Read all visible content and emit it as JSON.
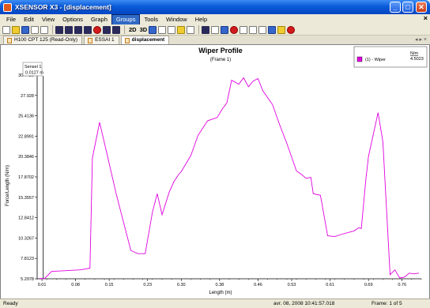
{
  "window": {
    "title": "XSENSOR X3 - [displacement]",
    "minimize_glyph": "_",
    "maximize_glyph": "□",
    "close_glyph": "✕"
  },
  "menu": {
    "items": [
      "File",
      "Edit",
      "View",
      "Options",
      "Graph",
      "Groups",
      "Tools",
      "Window",
      "Help"
    ],
    "active_index": 5,
    "mdi_close_glyph": "×"
  },
  "toolbar": {
    "view_2d": "2D",
    "view_3d": "3D"
  },
  "tabs": [
    {
      "label": "H100 CPT 125 (Read-Only)",
      "active": false
    },
    {
      "label": "ESSAI 1",
      "active": false
    },
    {
      "label": "displacement",
      "active": true
    }
  ],
  "tab_nav": "◂ ▸ ×",
  "chart_data": {
    "type": "line",
    "title": "Wiper Profile",
    "subtitle": "(Frame 1)",
    "xlabel": "Length (m)",
    "ylabel": "Force/Length (N/m)",
    "xlim": [
      0.0,
      0.8
    ],
    "ylim": [
      5.2978,
      30.4425
    ],
    "x_ticks": [
      "0.01",
      "0.08",
      "0.15",
      "0.23",
      "0.30",
      "0.38",
      "0.46",
      "0.53",
      "0.61",
      "0.69",
      "0.76"
    ],
    "x_tick_values": [
      0.01,
      0.08,
      0.15,
      0.23,
      0.3,
      0.38,
      0.46,
      0.53,
      0.61,
      0.69,
      0.76
    ],
    "y_ticks": [
      "5.2978",
      "7.8123",
      "10.3267",
      "12.8412",
      "15.3557",
      "17.8702",
      "20.3846",
      "22.8991",
      "25.4136",
      "27.928",
      "30.4425"
    ],
    "y_tick_values": [
      5.2978,
      7.8123,
      10.3267,
      12.8412,
      15.3557,
      17.8702,
      20.3846,
      22.8991,
      25.4136,
      27.928,
      30.4425
    ],
    "series": [
      {
        "name": "(1) - Wiper",
        "color": "#e000e0",
        "x": [
          0.005,
          0.015,
          0.03,
          0.06,
          0.09,
          0.11,
          0.115,
          0.13,
          0.145,
          0.165,
          0.195,
          0.21,
          0.225,
          0.24,
          0.25,
          0.26,
          0.275,
          0.285,
          0.295,
          0.3,
          0.32,
          0.335,
          0.355,
          0.375,
          0.385,
          0.395,
          0.405,
          0.42,
          0.43,
          0.44,
          0.45,
          0.46,
          0.47,
          0.49,
          0.505,
          0.52,
          0.54,
          0.55,
          0.56,
          0.57,
          0.575,
          0.59,
          0.605,
          0.62,
          0.635,
          0.66,
          0.67,
          0.675,
          0.685,
          0.69,
          0.71,
          0.72,
          0.735,
          0.745,
          0.755,
          0.765,
          0.775,
          0.785,
          0.795
        ],
        "y": [
          5.35,
          5.3,
          6.2,
          6.3,
          6.4,
          6.6,
          20.2,
          24.6,
          20.8,
          15.7,
          8.8,
          8.4,
          8.4,
          13.5,
          15.8,
          13.2,
          16.0,
          17.3,
          18.2,
          18.5,
          20.5,
          23.0,
          24.8,
          25.2,
          26.2,
          27.0,
          29.8,
          29.3,
          30.1,
          29.0,
          29.7,
          30.0,
          28.5,
          26.8,
          24.3,
          22.0,
          18.6,
          18.2,
          17.7,
          17.8,
          15.8,
          15.6,
          10.6,
          10.5,
          10.8,
          11.2,
          11.6,
          11.5,
          17.8,
          20.4,
          25.8,
          22.2,
          5.8,
          6.4,
          5.4,
          5.5,
          6.0,
          5.9,
          6.0
        ]
      }
    ],
    "legend": {
      "placement": "top-right",
      "unit_header": "N/m",
      "value": "4.5023"
    },
    "cursor": {
      "sensor_label": "Sensel 1",
      "position_label": "0.0127 m",
      "x": 0.0127
    },
    "background": "#ffffff"
  },
  "status": {
    "left": "Ready",
    "timestamp": "avr. 08, 2008  10:41:57.018",
    "frame": "Frame: 1 of 5"
  }
}
